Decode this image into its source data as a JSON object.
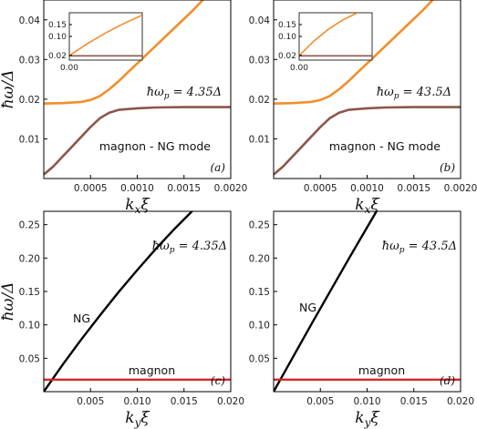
{
  "y_axis_label": "ħω/Δ",
  "chart_data": [
    {
      "type": "line",
      "panel_label": "(a)",
      "annotation": "ħωp = 4.35Δ",
      "curve_label": "magnon - NG mode",
      "xlabel": "kxξ",
      "ylabel": "ħω/Δ",
      "xlim": [
        0,
        0.002
      ],
      "ylim": [
        0,
        0.045
      ],
      "xticks": [
        "0.0005",
        "0.0010",
        "0.0015",
        "0.0020"
      ],
      "yticks": [
        "0.01",
        "0.02",
        "0.03",
        "0.04"
      ],
      "series": [
        {
          "color": "#f28e2b",
          "x": [
            0.0,
            0.0002,
            0.0004,
            0.0005,
            0.0006,
            0.0007,
            0.0008,
            0.0009,
            0.001,
            0.0012,
            0.0014,
            0.0016,
            0.0017
          ],
          "y": [
            0.0189,
            0.019,
            0.0193,
            0.0198,
            0.0208,
            0.0225,
            0.0245,
            0.0268,
            0.029,
            0.0335,
            0.038,
            0.0425,
            0.045
          ]
        },
        {
          "color": "#8c564b",
          "x": [
            0.0,
            0.0001,
            0.0002,
            0.0003,
            0.0004,
            0.0005,
            0.0006,
            0.0007,
            0.0008,
            0.001,
            0.0012,
            0.0015,
            0.002
          ],
          "y": [
            0.001,
            0.003,
            0.0055,
            0.008,
            0.0105,
            0.013,
            0.0152,
            0.0166,
            0.0173,
            0.0177,
            0.0179,
            0.018,
            0.018
          ]
        }
      ],
      "inset": {
        "xticks": [
          "0.00"
        ],
        "yticks": [
          "0.02",
          "0.10",
          "0.15"
        ],
        "ylim": [
          0,
          0.2
        ],
        "series": [
          {
            "color": "#f28e2b",
            "x": [
              0,
              0.25,
              0.5,
              0.75,
              1.0
            ],
            "y": [
              0.019,
              0.07,
              0.115,
              0.155,
              0.19
            ]
          },
          {
            "color": "#8c564b",
            "x": [
              0,
              1.0
            ],
            "y": [
              0.018,
              0.018
            ]
          }
        ]
      }
    },
    {
      "type": "line",
      "panel_label": "(b)",
      "annotation": "ħωp = 43.5Δ",
      "curve_label": "magnon - NG mode",
      "xlabel": "kxξ",
      "ylabel": "",
      "xlim": [
        0,
        0.002
      ],
      "ylim": [
        0,
        0.045
      ],
      "xticks": [
        "0.0005",
        "0.0010",
        "0.0015",
        "0.0020"
      ],
      "yticks": [
        "0.01",
        "0.02",
        "0.03",
        "0.04"
      ],
      "series": [
        {
          "color": "#f28e2b",
          "x": [
            0.0,
            0.0002,
            0.0004,
            0.0005,
            0.0006,
            0.0007,
            0.0008,
            0.0009,
            0.001,
            0.0012,
            0.0014,
            0.0016,
            0.0017
          ],
          "y": [
            0.0189,
            0.019,
            0.0193,
            0.0198,
            0.0208,
            0.0225,
            0.0245,
            0.0268,
            0.029,
            0.0335,
            0.038,
            0.0425,
            0.045
          ]
        },
        {
          "color": "#8c564b",
          "x": [
            0.0,
            0.0001,
            0.0002,
            0.0003,
            0.0004,
            0.0005,
            0.0006,
            0.0007,
            0.0008,
            0.001,
            0.0012,
            0.0015,
            0.002
          ],
          "y": [
            0.001,
            0.003,
            0.0055,
            0.008,
            0.0105,
            0.013,
            0.0152,
            0.0166,
            0.0173,
            0.0177,
            0.0179,
            0.018,
            0.018
          ]
        }
      ],
      "inset": {
        "xticks": [
          "0.00"
        ],
        "yticks": [
          "0.02",
          "0.10",
          "0.15"
        ],
        "ylim": [
          0,
          0.2
        ],
        "series": [
          {
            "color": "#f28e2b",
            "x": [
              0,
              0.2,
              0.4,
              0.6,
              0.8
            ],
            "y": [
              0.019,
              0.08,
              0.13,
              0.17,
              0.2
            ]
          },
          {
            "color": "#8c564b",
            "x": [
              0,
              1.0
            ],
            "y": [
              0.018,
              0.018
            ]
          }
        ]
      }
    },
    {
      "type": "line",
      "panel_label": "(c)",
      "annotation": "ħωp = 4.35Δ",
      "labels": [
        "NG",
        "magnon"
      ],
      "xlabel": "kyξ",
      "ylabel": "ħω/Δ",
      "xlim": [
        0,
        0.02
      ],
      "ylim": [
        0,
        0.27
      ],
      "xticks": [
        "0.005",
        "0.010",
        "0.015",
        "0.020"
      ],
      "yticks": [
        "0.05",
        "0.10",
        "0.15",
        "0.20",
        "0.25"
      ],
      "series": [
        {
          "color": "#000000",
          "x": [
            0.0,
            0.002,
            0.004,
            0.006,
            0.008,
            0.01,
            0.012,
            0.014,
            0.016
          ],
          "y": [
            0.0,
            0.04,
            0.078,
            0.114,
            0.149,
            0.182,
            0.214,
            0.244,
            0.272
          ]
        },
        {
          "color": "#d62728",
          "x": [
            0.0,
            0.02
          ],
          "y": [
            0.018,
            0.018
          ]
        }
      ]
    },
    {
      "type": "line",
      "panel_label": "(d)",
      "annotation": "ħωp = 43.5Δ",
      "labels": [
        "NG",
        "magnon"
      ],
      "xlabel": "kyξ",
      "ylabel": "",
      "xlim": [
        0,
        0.02
      ],
      "ylim": [
        0,
        0.27
      ],
      "xticks": [
        "0.005",
        "0.010",
        "0.015",
        "0.020"
      ],
      "yticks": [
        "0.05",
        "0.10",
        "0.15",
        "0.20",
        "0.25"
      ],
      "series": [
        {
          "color": "#000000",
          "x": [
            0.0,
            0.002,
            0.004,
            0.006,
            0.008,
            0.01,
            0.011
          ],
          "y": [
            0.0,
            0.05,
            0.1,
            0.149,
            0.198,
            0.246,
            0.27
          ]
        },
        {
          "color": "#d62728",
          "x": [
            0.0,
            0.02
          ],
          "y": [
            0.018,
            0.018
          ]
        }
      ]
    }
  ]
}
